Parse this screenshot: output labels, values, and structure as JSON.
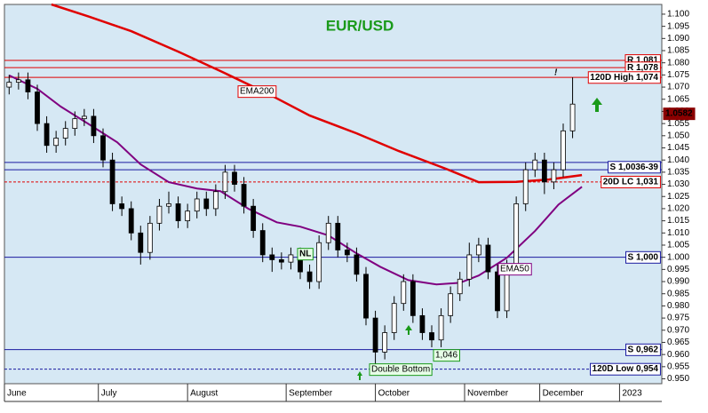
{
  "chart_data": {
    "type": "candlestick",
    "title": "EUR/USD",
    "x": [
      1,
      3,
      5,
      7,
      9,
      11,
      13,
      15,
      17,
      19,
      21,
      23,
      25,
      27,
      29,
      31,
      33,
      35,
      37,
      39,
      41,
      43,
      45,
      47,
      49,
      51,
      53,
      55,
      57,
      59,
      61,
      63,
      65,
      67,
      69,
      71,
      73,
      75,
      77,
      79,
      81,
      83,
      85,
      87,
      89,
      91,
      93,
      95,
      97,
      99,
      101,
      103,
      105,
      107,
      109,
      111,
      113,
      115,
      117,
      119,
      121
    ],
    "open": [
      1.07,
      1.072,
      1.073,
      1.068,
      1.055,
      1.046,
      1.049,
      1.053,
      1.057,
      1.058,
      1.05,
      1.04,
      1.022,
      1.02,
      1.01,
      1.002,
      1.014,
      1.021,
      1.022,
      1.015,
      1.019,
      1.024,
      1.02,
      1.027,
      1.035,
      1.03,
      1.021,
      1.011,
      1.001,
      0.999,
      0.998,
      1.001,
      0.994,
      0.99,
      1.006,
      1.014,
      1.003,
      1.001,
      0.993,
      0.975,
      0.961,
      0.969,
      0.981,
      0.99,
      0.976,
      0.969,
      0.966,
      0.976,
      0.985,
      0.991,
      1.001,
      1.005,
      0.994,
      0.978,
      0.996,
      1.022,
      1.036,
      1.04,
      1.031,
      1.036,
      1.052
    ],
    "high": [
      1.075,
      1.076,
      1.076,
      1.071,
      1.058,
      1.052,
      1.056,
      1.06,
      1.061,
      1.061,
      1.053,
      1.043,
      1.025,
      1.023,
      1.013,
      1.017,
      1.024,
      1.027,
      1.025,
      1.022,
      1.027,
      1.027,
      1.03,
      1.038,
      1.038,
      1.033,
      1.024,
      1.014,
      1.004,
      1.002,
      1.004,
      1.004,
      0.997,
      1.009,
      1.017,
      1.017,
      1.006,
      1.004,
      0.996,
      0.978,
      0.972,
      0.984,
      0.993,
      0.993,
      0.979,
      0.972,
      0.979,
      0.988,
      0.994,
      1.006,
      1.008,
      1.008,
      0.997,
      0.999,
      1.025,
      1.039,
      1.043,
      1.043,
      1.039,
      1.055,
      1.074
    ],
    "low": [
      1.067,
      1.069,
      1.065,
      1.052,
      1.043,
      1.043,
      1.046,
      1.05,
      1.054,
      1.047,
      1.037,
      1.019,
      1.017,
      1.007,
      0.997,
      0.999,
      1.011,
      1.018,
      1.012,
      1.012,
      1.016,
      1.017,
      1.017,
      1.024,
      1.027,
      1.018,
      1.008,
      0.998,
      0.994,
      0.995,
      0.995,
      0.991,
      0.987,
      0.987,
      1.003,
      1.0,
      0.998,
      0.99,
      0.972,
      0.954,
      0.958,
      0.966,
      0.978,
      0.973,
      0.966,
      0.963,
      0.963,
      0.973,
      0.982,
      0.988,
      0.998,
      0.991,
      0.975,
      0.975,
      0.993,
      1.019,
      1.033,
      1.026,
      1.028,
      1.033,
      1.049
    ],
    "close": [
      1.072,
      1.073,
      1.068,
      1.055,
      1.046,
      1.049,
      1.053,
      1.057,
      1.058,
      1.05,
      1.04,
      1.022,
      1.02,
      1.01,
      1.002,
      1.014,
      1.021,
      1.022,
      1.015,
      1.019,
      1.024,
      1.02,
      1.027,
      1.035,
      1.03,
      1.021,
      1.011,
      1.001,
      0.999,
      0.998,
      1.001,
      0.994,
      0.99,
      1.006,
      1.014,
      1.003,
      1.001,
      0.993,
      0.975,
      0.961,
      0.969,
      0.981,
      0.99,
      0.976,
      0.969,
      0.966,
      0.976,
      0.985,
      0.991,
      1.001,
      1.005,
      0.994,
      0.978,
      0.996,
      1.022,
      1.036,
      1.04,
      1.031,
      1.036,
      1.052,
      1.063
    ],
    "xlim": [
      0,
      140
    ],
    "ylim": [
      0.948,
      1.104
    ],
    "xticks": [
      {
        "value": 0,
        "label": "June"
      },
      {
        "value": 20,
        "label": "July"
      },
      {
        "value": 39,
        "label": "August"
      },
      {
        "value": 60,
        "label": "September"
      },
      {
        "value": 79,
        "label": "October"
      },
      {
        "value": 98,
        "label": "November"
      },
      {
        "value": 114,
        "label": "December"
      },
      {
        "value": 131,
        "label": "2023"
      }
    ],
    "yticks": [
      {
        "value": 0.95,
        "label": "0.950"
      },
      {
        "value": 0.955,
        "label": "0.955"
      },
      {
        "value": 0.96,
        "label": "0.960"
      },
      {
        "value": 0.965,
        "label": "0.965"
      },
      {
        "value": 0.97,
        "label": "0.970"
      },
      {
        "value": 0.975,
        "label": "0.975"
      },
      {
        "value": 0.98,
        "label": "0.980"
      },
      {
        "value": 0.985,
        "label": "0.985"
      },
      {
        "value": 0.99,
        "label": "0.990"
      },
      {
        "value": 0.995,
        "label": "0.995"
      },
      {
        "value": 1.0,
        "label": "1.000"
      },
      {
        "value": 1.005,
        "label": "1.005"
      },
      {
        "value": 1.01,
        "label": "1.010"
      },
      {
        "value": 1.015,
        "label": "1.015"
      },
      {
        "value": 1.02,
        "label": "1.020"
      },
      {
        "value": 1.025,
        "label": "1.025"
      },
      {
        "value": 1.03,
        "label": "1.030"
      },
      {
        "value": 1.035,
        "label": "1.035"
      },
      {
        "value": 1.04,
        "label": "1.040"
      },
      {
        "value": 1.045,
        "label": "1.045"
      },
      {
        "value": 1.05,
        "label": "1.050"
      },
      {
        "value": 1.055,
        "label": "1.055"
      },
      {
        "value": 1.06,
        "label": "1.060"
      },
      {
        "value": 1.065,
        "label": "1.065"
      },
      {
        "value": 1.07,
        "label": "1.070"
      },
      {
        "value": 1.075,
        "label": "1.075"
      },
      {
        "value": 1.08,
        "label": "1.080"
      },
      {
        "value": 1.085,
        "label": "1.085"
      },
      {
        "value": 1.09,
        "label": "1.090"
      },
      {
        "value": 1.095,
        "label": "1.095"
      },
      {
        "value": 1.1,
        "label": "1.100"
      }
    ],
    "lines": [
      {
        "name": "EMA200",
        "color": "#e00000",
        "x": [
          10,
          18,
          27,
          37,
          46,
          56,
          65,
          75,
          84,
          94,
          101,
          109,
          116,
          123
        ],
        "values": [
          1.104,
          1.099,
          1.093,
          1.0846,
          1.0766,
          1.0674,
          1.0583,
          1.051,
          1.0437,
          1.0364,
          1.0309,
          1.031,
          1.032,
          1.0338
        ]
      },
      {
        "name": "EMA50",
        "color": "#800080",
        "x": [
          1,
          7,
          12,
          18,
          24,
          29,
          35,
          41,
          46,
          52,
          58,
          63,
          69,
          75,
          80,
          86,
          92,
          97,
          101,
          107,
          113,
          118,
          123
        ],
        "values": [
          1.0748,
          1.0693,
          1.062,
          1.0547,
          1.0473,
          1.0382,
          1.0309,
          1.0283,
          1.0272,
          1.0199,
          1.0144,
          1.0126,
          1.009,
          1.0016,
          0.9961,
          0.9906,
          0.9888,
          0.9895,
          0.9925,
          0.9998,
          1.0108,
          1.0217,
          1.029
        ]
      }
    ],
    "levels": [
      {
        "name": "R 1,081",
        "values": [
          1.081
        ],
        "color": "#e00000",
        "dashed": false
      },
      {
        "name": "R 1,078",
        "values": [
          1.078
        ],
        "color": "#e00000",
        "dashed": false
      },
      {
        "name": "120D High 1,074",
        "values": [
          1.074
        ],
        "color": "#e00000",
        "dashed": false
      },
      {
        "name": "S 1,0036-39",
        "values": [
          1.036,
          1.039
        ],
        "color": "#1a1aa0",
        "dashed": false
      },
      {
        "name": "20D LC 1,031",
        "values": [
          1.031
        ],
        "color": "#e00000",
        "dashed": true
      },
      {
        "name": "S 1,000",
        "values": [
          1.0
        ],
        "color": "#1a1aa0",
        "dashed": false
      },
      {
        "name": "S 0,962",
        "values": [
          0.962
        ],
        "color": "#1a1aa0",
        "dashed": false
      },
      {
        "name": "120D Low 0,954",
        "values": [
          0.954
        ],
        "color": "#1a1aa0",
        "dashed": true
      }
    ],
    "annotations": [
      "NL",
      "1,046",
      "Double Bottom",
      "!",
      "1.0582"
    ]
  }
}
